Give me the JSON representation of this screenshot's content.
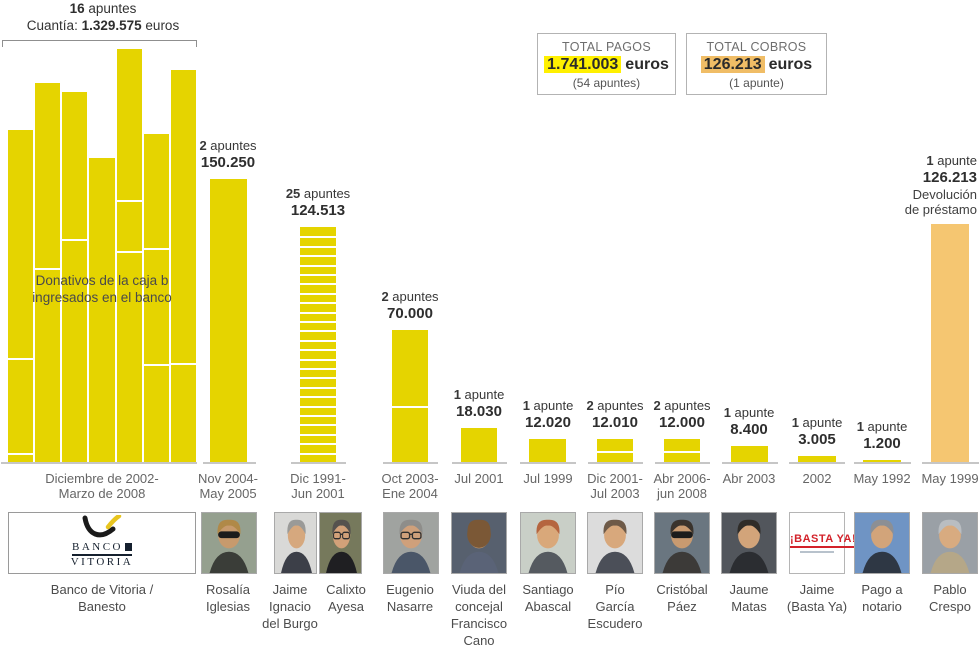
{
  "palette": {
    "bar_yellow": "#e5d400",
    "bar_orange": "#f5c671",
    "highlight_yellow": "#fff000",
    "highlight_orange": "#f0bd66",
    "baseline_gray": "#c6c6c6",
    "text_dark": "#2e2e2e",
    "text_gray": "#666666"
  },
  "group_annotation": {
    "count": "16",
    "count_word": "apuntes",
    "cuantia_prefix": "Cuantía:",
    "amount": "1.329.575",
    "amount_word": "euros",
    "overlay_line1": "Donativos de la caja b",
    "overlay_line2": "ingresados en el banco"
  },
  "totals_pagos": {
    "title": "TOTAL PAGOS",
    "amount": "1.741.003",
    "unit": "euros",
    "note": "(54 apuntes)"
  },
  "totals_cobros": {
    "title": "TOTAL COBROS",
    "amount": "126.213",
    "unit": "euros",
    "note": "(1 apunte)"
  },
  "chart_data": {
    "type": "bar",
    "unit": "euros",
    "scale_euros_per_pixel": 530,
    "bars": [
      {
        "recipient": "Banco de Vitoria / Banesto",
        "apuntes": 16,
        "count_word": "apuntes",
        "amount": 1329575,
        "amount_label": "1.329.575",
        "period": [
          "Diciembre de 2002-",
          "Marzo de 2008"
        ],
        "kind": "pago",
        "note": "Donativos de la caja b ingresados en el banco",
        "group_columns_amounts": [
          176000,
          201000,
          196000,
          161000,
          219000,
          174000,
          208000
        ],
        "group_column_dividers": [
          [
            0.687,
            0.973
          ],
          [
            0.489
          ],
          [
            0.397
          ],
          [],
          [
            0.366,
            0.489
          ],
          [
            0.348,
            0.701
          ],
          [
            0.748
          ]
        ]
      },
      {
        "recipient": "Rosalía Iglesias",
        "apuntes": 2,
        "count_word": "apuntes",
        "amount": 150250,
        "amount_label": "150.250",
        "period": [
          "Nov 2004-",
          "May 2005"
        ],
        "kind": "pago",
        "dividers": []
      },
      {
        "recipient": "Jaime Ignacio del Burgo / Calixto Ayesa",
        "apuntes": 25,
        "count_word": "apuntes",
        "amount": 124513,
        "amount_label": "124.513",
        "period": [
          "Dic 1991-",
          "Jun 2001"
        ],
        "kind": "pago"
      },
      {
        "recipient": "Eugenio Nasarre",
        "apuntes": 2,
        "count_word": "apuntes",
        "amount": 70000,
        "amount_label": "70.000",
        "period": [
          "Oct 2003-",
          "Ene 2004"
        ],
        "kind": "pago",
        "dividers": [
          0.576
        ]
      },
      {
        "recipient": "Viuda del concejal Francisco Cano",
        "apuntes": 1,
        "count_word": "apunte",
        "amount": 18030,
        "amount_label": "18.030",
        "period": [
          "Jul 2001"
        ],
        "kind": "pago"
      },
      {
        "recipient": "Santiago Abascal",
        "apuntes": 1,
        "count_word": "apunte",
        "amount": 12020,
        "amount_label": "12.020",
        "period": [
          "Jul 1999"
        ],
        "kind": "pago"
      },
      {
        "recipient": "Pío García Escudero",
        "apuntes": 2,
        "count_word": "apuntes",
        "amount": 12010,
        "amount_label": "12.010",
        "period": [
          "Dic 2001-",
          "Jul 2003"
        ],
        "kind": "pago"
      },
      {
        "recipient": "Cristóbal Páez",
        "apuntes": 2,
        "count_word": "apuntes",
        "amount": 12000,
        "amount_label": "12.000",
        "period": [
          "Abr 2006-",
          "jun 2008"
        ],
        "kind": "pago"
      },
      {
        "recipient": "Jaume Matas",
        "apuntes": 1,
        "count_word": "apunte",
        "amount": 8400,
        "amount_label": "8.400",
        "period": [
          "Abr 2003"
        ],
        "kind": "pago"
      },
      {
        "recipient": "Jaime (Basta Ya)",
        "apuntes": 1,
        "count_word": "apunte",
        "amount": 3005,
        "amount_label": "3.005",
        "period": [
          "2002"
        ],
        "kind": "pago"
      },
      {
        "recipient": "Pago a notario",
        "apuntes": 1,
        "count_word": "apunte",
        "amount": 1200,
        "amount_label": "1.200",
        "period": [
          "May 1992"
        ],
        "kind": "pago"
      },
      {
        "recipient": "Pablo Crespo",
        "apuntes": 1,
        "count_word": "apunte",
        "amount": 126213,
        "amount_label": "126.213",
        "period": [
          "May 1999"
        ],
        "kind": "cobro",
        "note_lines": [
          "Devolución",
          "de préstamo"
        ]
      }
    ]
  },
  "people_row": [
    {
      "type": "logo",
      "slug": "banco-de-vitoria",
      "name_lines": [
        "Banco de Vitoria /",
        "Banesto"
      ],
      "logo_top": "BANCO",
      "logo_bottom": "VITORIA"
    },
    {
      "type": "photo",
      "slug": "rosalia-iglesias",
      "name_lines": [
        "Rosalía",
        "Iglesias"
      ],
      "photo": {
        "bg": "#95a08f",
        "skin": "#c79a6d",
        "hair": "#b08948",
        "suit": "#3a3d38",
        "extra": "sunglasses"
      }
    },
    {
      "type": "photo-pair",
      "slug": "del-burgo-ayesa",
      "names": [
        [
          "Jaime",
          "Ignacio",
          "del Burgo"
        ],
        [
          "Calixto",
          "Ayesa"
        ]
      ],
      "photos": [
        {
          "bg": "#d9d9d7",
          "skin": "#d6a87e",
          "hair": "#9a9a98",
          "suit": "#3c3f48",
          "extra": "none"
        },
        {
          "bg": "#76795c",
          "skin": "#d2a179",
          "hair": "#55524e",
          "suit": "#1f1f22",
          "extra": "glasses"
        }
      ]
    },
    {
      "type": "photo",
      "slug": "eugenio-nasarre",
      "name_lines": [
        "Eugenio",
        "Nasarre"
      ],
      "photo": {
        "bg": "#a0a3a0",
        "skin": "#cfa07b",
        "hair": "#8e8d8a",
        "suit": "#4a5668",
        "extra": "glasses"
      }
    },
    {
      "type": "photo",
      "slug": "viuda-francisco-cano",
      "name_lines": [
        "Viuda del",
        "concejal",
        "Francisco",
        "Cano"
      ],
      "photo": {
        "bg": "#57606e",
        "skin": "#c79a6d",
        "hair": "#7b5836",
        "suit": "#5a6377",
        "extra": "headdown"
      }
    },
    {
      "type": "photo",
      "slug": "santiago-abascal",
      "name_lines": [
        "Santiago",
        "Abascal"
      ],
      "photo": {
        "bg": "#c9cfc7",
        "skin": "#d9a87a",
        "hair": "#b5653f",
        "suit": "#555a60",
        "extra": "none"
      }
    },
    {
      "type": "photo",
      "slug": "pio-garcia-escudero",
      "name_lines": [
        "Pío",
        "García",
        "Escudero"
      ],
      "photo": {
        "bg": "#dcdcdc",
        "skin": "#d8a87c",
        "hair": "#6e5a48",
        "suit": "#4b4f58",
        "extra": "none"
      }
    },
    {
      "type": "photo",
      "slug": "cristobal-paez",
      "name_lines": [
        "Cristóbal",
        "Páez"
      ],
      "photo": {
        "bg": "#6a7680",
        "skin": "#c89a70",
        "hair": "#3a332c",
        "suit": "#3c3a38",
        "extra": "sunglasses"
      }
    },
    {
      "type": "photo",
      "slug": "jaume-matas",
      "name_lines": [
        "Jaume",
        "Matas"
      ],
      "photo": {
        "bg": "#52565c",
        "skin": "#d2a47a",
        "hair": "#2f2c28",
        "suit": "#2b2d31",
        "extra": "none"
      }
    },
    {
      "type": "sign",
      "slug": "basta-ya",
      "name_lines": [
        "Jaime",
        "(Basta Ya)"
      ],
      "sign_text": "¡BASTA YA!"
    },
    {
      "type": "photo",
      "slug": "pago-a-notario",
      "name_lines": [
        "Pago a",
        "notario"
      ],
      "photo": {
        "bg": "#6f94c4",
        "skin": "#d2a47a",
        "hair": "#8c8f94",
        "suit": "#2e3744",
        "extra": "none"
      }
    },
    {
      "type": "photo",
      "slug": "pablo-crespo",
      "name_lines": [
        "Pablo",
        "Crespo"
      ],
      "photo": {
        "bg": "#9aa0a6",
        "skin": "#d8ab80",
        "hair": "#b9bdc1",
        "suit": "#b5a788",
        "extra": "none"
      }
    }
  ]
}
